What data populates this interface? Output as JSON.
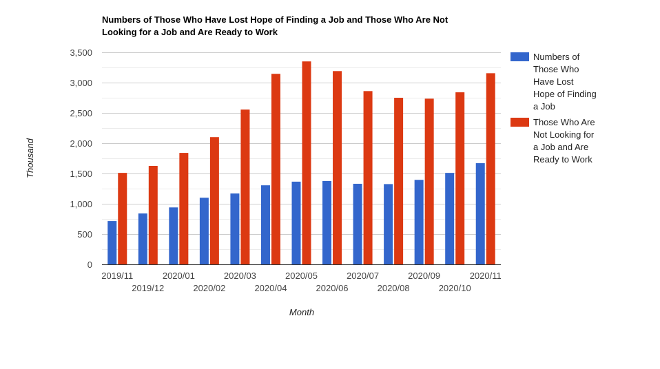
{
  "chart_data": {
    "type": "bar",
    "title_lines": [
      "Numbers of Those Who Have Lost Hope of Finding a Job and Those Who Are Not",
      "Looking for a Job and Are Ready to Work"
    ],
    "xlabel": "Month",
    "ylabel": "Thousand",
    "categories": [
      "2019/11",
      "2019/12",
      "2020/01",
      "2020/02",
      "2020/03",
      "2020/04",
      "2020/05",
      "2020/06",
      "2020/07",
      "2020/08",
      "2020/09",
      "2020/10",
      "2020/11"
    ],
    "series": [
      {
        "name": "Numbers of Those Who Have Lost Hope of Finding a Job",
        "legend_lines": [
          "Numbers of",
          "Those Who",
          "Have Lost",
          "Hope of Finding",
          "a Job"
        ],
        "color": "#3366cc",
        "values": [
          715,
          840,
          940,
          1100,
          1170,
          1305,
          1365,
          1375,
          1330,
          1325,
          1395,
          1510,
          1670
        ]
      },
      {
        "name": "Those Who Are Not Looking for a Job and Are Ready to Work",
        "legend_lines": [
          "Those Who Are",
          "Not Looking for",
          "a Job and Are",
          "Ready to Work"
        ],
        "color": "#dc3912",
        "values": [
          1510,
          1625,
          1840,
          2100,
          2555,
          3145,
          3350,
          3190,
          2860,
          2750,
          2735,
          2840,
          3155
        ]
      }
    ],
    "ylim": [
      0,
      3500
    ],
    "yticks": [
      0,
      500,
      1000,
      1500,
      2000,
      2500,
      3000,
      3500
    ],
    "ytick_labels": [
      "0",
      "500",
      "1,000",
      "1,500",
      "2,000",
      "2,500",
      "3,000",
      "3,500"
    ],
    "grid": true,
    "legend_position": "right"
  }
}
